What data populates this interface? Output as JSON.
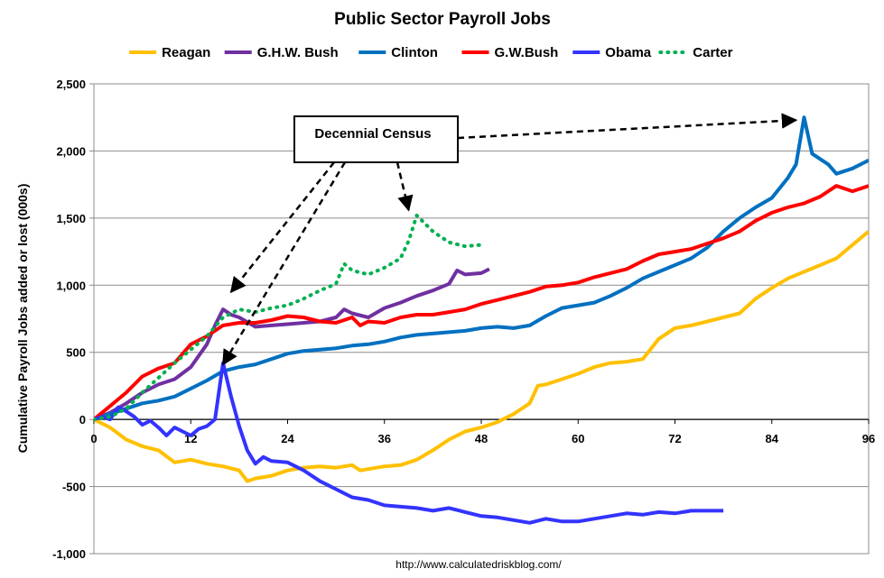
{
  "chart_data": {
    "type": "line",
    "title": "Public Sector Payroll Jobs",
    "ylabel": "Cumulative Payroll Jobs added or lost (000s)",
    "xlabel": "",
    "xlim": [
      0,
      96
    ],
    "ylim": [
      -1000,
      2500
    ],
    "xticks": [
      "0",
      "12",
      "24",
      "36",
      "48",
      "60",
      "72",
      "84",
      "96"
    ],
    "xtick_values": [
      0,
      12,
      24,
      36,
      48,
      60,
      72,
      84,
      96
    ],
    "yticks": [
      "2,500",
      "2,000",
      "1,500",
      "1,000",
      "500",
      "0",
      "-500",
      "-1,000"
    ],
    "ytick_values": [
      2500,
      2000,
      1500,
      1000,
      500,
      0,
      -500,
      -1000
    ],
    "grid": "horizontal",
    "legend_position": "top",
    "series": [
      {
        "name": "Reagan",
        "color": "#FFC000",
        "style": "solid",
        "points": [
          [
            0,
            0
          ],
          [
            2,
            -60
          ],
          [
            4,
            -150
          ],
          [
            6,
            -200
          ],
          [
            8,
            -230
          ],
          [
            10,
            -320
          ],
          [
            12,
            -300
          ],
          [
            14,
            -330
          ],
          [
            16,
            -350
          ],
          [
            18,
            -380
          ],
          [
            19,
            -460
          ],
          [
            20,
            -440
          ],
          [
            22,
            -420
          ],
          [
            24,
            -380
          ],
          [
            26,
            -360
          ],
          [
            28,
            -350
          ],
          [
            30,
            -360
          ],
          [
            32,
            -340
          ],
          [
            33,
            -380
          ],
          [
            34,
            -370
          ],
          [
            36,
            -350
          ],
          [
            38,
            -340
          ],
          [
            40,
            -300
          ],
          [
            42,
            -230
          ],
          [
            44,
            -150
          ],
          [
            46,
            -90
          ],
          [
            48,
            -60
          ],
          [
            50,
            -20
          ],
          [
            52,
            40
          ],
          [
            54,
            120
          ],
          [
            55,
            250
          ],
          [
            56,
            260
          ],
          [
            58,
            300
          ],
          [
            60,
            340
          ],
          [
            62,
            390
          ],
          [
            64,
            420
          ],
          [
            66,
            430
          ],
          [
            68,
            450
          ],
          [
            70,
            600
          ],
          [
            72,
            680
          ],
          [
            74,
            700
          ],
          [
            76,
            730
          ],
          [
            78,
            760
          ],
          [
            80,
            790
          ],
          [
            82,
            900
          ],
          [
            84,
            980
          ],
          [
            86,
            1050
          ],
          [
            88,
            1100
          ],
          [
            90,
            1150
          ],
          [
            92,
            1200
          ],
          [
            94,
            1300
          ],
          [
            96,
            1400
          ]
        ]
      },
      {
        "name": "G.H.W. Bush",
        "color": "#7030A0",
        "style": "solid",
        "points": [
          [
            0,
            0
          ],
          [
            2,
            50
          ],
          [
            4,
            120
          ],
          [
            6,
            200
          ],
          [
            8,
            260
          ],
          [
            10,
            300
          ],
          [
            12,
            390
          ],
          [
            14,
            560
          ],
          [
            15,
            700
          ],
          [
            16,
            820
          ],
          [
            17,
            780
          ],
          [
            18,
            760
          ],
          [
            20,
            690
          ],
          [
            22,
            700
          ],
          [
            24,
            710
          ],
          [
            26,
            720
          ],
          [
            28,
            730
          ],
          [
            30,
            760
          ],
          [
            31,
            820
          ],
          [
            32,
            790
          ],
          [
            34,
            760
          ],
          [
            36,
            830
          ],
          [
            38,
            870
          ],
          [
            40,
            920
          ],
          [
            42,
            960
          ],
          [
            44,
            1010
          ],
          [
            45,
            1110
          ],
          [
            46,
            1080
          ],
          [
            48,
            1090
          ],
          [
            49,
            1120
          ]
        ]
      },
      {
        "name": "Clinton",
        "color": "#0070C0",
        "style": "solid",
        "points": [
          [
            0,
            0
          ],
          [
            2,
            40
          ],
          [
            4,
            80
          ],
          [
            6,
            120
          ],
          [
            8,
            140
          ],
          [
            10,
            170
          ],
          [
            12,
            230
          ],
          [
            14,
            290
          ],
          [
            16,
            360
          ],
          [
            18,
            390
          ],
          [
            20,
            410
          ],
          [
            22,
            450
          ],
          [
            24,
            490
          ],
          [
            26,
            510
          ],
          [
            28,
            520
          ],
          [
            30,
            530
          ],
          [
            32,
            550
          ],
          [
            34,
            560
          ],
          [
            36,
            580
          ],
          [
            38,
            610
          ],
          [
            40,
            630
          ],
          [
            42,
            640
          ],
          [
            44,
            650
          ],
          [
            46,
            660
          ],
          [
            48,
            680
          ],
          [
            50,
            690
          ],
          [
            52,
            680
          ],
          [
            54,
            700
          ],
          [
            56,
            770
          ],
          [
            58,
            830
          ],
          [
            60,
            850
          ],
          [
            62,
            870
          ],
          [
            64,
            920
          ],
          [
            66,
            980
          ],
          [
            68,
            1050
          ],
          [
            70,
            1100
          ],
          [
            72,
            1150
          ],
          [
            74,
            1200
          ],
          [
            76,
            1280
          ],
          [
            78,
            1400
          ],
          [
            80,
            1500
          ],
          [
            82,
            1580
          ],
          [
            84,
            1650
          ],
          [
            86,
            1800
          ],
          [
            87,
            1900
          ],
          [
            88,
            2250
          ],
          [
            89,
            1980
          ],
          [
            90,
            1940
          ],
          [
            91,
            1900
          ],
          [
            92,
            1830
          ],
          [
            94,
            1870
          ],
          [
            96,
            1930
          ]
        ]
      },
      {
        "name": "G.W.Bush",
        "color": "#FF0000",
        "style": "solid",
        "points": [
          [
            0,
            0
          ],
          [
            2,
            100
          ],
          [
            4,
            200
          ],
          [
            6,
            320
          ],
          [
            8,
            380
          ],
          [
            10,
            420
          ],
          [
            12,
            560
          ],
          [
            14,
            620
          ],
          [
            16,
            700
          ],
          [
            18,
            720
          ],
          [
            20,
            720
          ],
          [
            22,
            740
          ],
          [
            24,
            770
          ],
          [
            26,
            760
          ],
          [
            28,
            730
          ],
          [
            30,
            720
          ],
          [
            32,
            760
          ],
          [
            33,
            700
          ],
          [
            34,
            730
          ],
          [
            36,
            720
          ],
          [
            38,
            760
          ],
          [
            40,
            780
          ],
          [
            42,
            780
          ],
          [
            44,
            800
          ],
          [
            46,
            820
          ],
          [
            48,
            860
          ],
          [
            50,
            890
          ],
          [
            52,
            920
          ],
          [
            54,
            950
          ],
          [
            56,
            990
          ],
          [
            58,
            1000
          ],
          [
            60,
            1020
          ],
          [
            62,
            1060
          ],
          [
            64,
            1090
          ],
          [
            66,
            1120
          ],
          [
            68,
            1180
          ],
          [
            70,
            1230
          ],
          [
            72,
            1250
          ],
          [
            74,
            1270
          ],
          [
            76,
            1310
          ],
          [
            78,
            1350
          ],
          [
            80,
            1400
          ],
          [
            82,
            1480
          ],
          [
            84,
            1540
          ],
          [
            86,
            1580
          ],
          [
            88,
            1610
          ],
          [
            90,
            1660
          ],
          [
            92,
            1740
          ],
          [
            94,
            1700
          ],
          [
            96,
            1740
          ]
        ]
      },
      {
        "name": "Obama",
        "color": "#3333FF",
        "style": "solid",
        "points": [
          [
            0,
            0
          ],
          [
            1,
            20
          ],
          [
            2,
            0
          ],
          [
            3,
            90
          ],
          [
            4,
            60
          ],
          [
            5,
            20
          ],
          [
            6,
            -40
          ],
          [
            7,
            -10
          ],
          [
            8,
            -60
          ],
          [
            9,
            -120
          ],
          [
            10,
            -60
          ],
          [
            11,
            -90
          ],
          [
            12,
            -120
          ],
          [
            13,
            -70
          ],
          [
            14,
            -50
          ],
          [
            15,
            0
          ],
          [
            16,
            420
          ],
          [
            17,
            170
          ],
          [
            18,
            -50
          ],
          [
            19,
            -230
          ],
          [
            20,
            -330
          ],
          [
            21,
            -280
          ],
          [
            22,
            -310
          ],
          [
            24,
            -320
          ],
          [
            26,
            -380
          ],
          [
            28,
            -460
          ],
          [
            30,
            -520
          ],
          [
            32,
            -580
          ],
          [
            34,
            -600
          ],
          [
            36,
            -640
          ],
          [
            38,
            -650
          ],
          [
            40,
            -660
          ],
          [
            42,
            -680
          ],
          [
            44,
            -660
          ],
          [
            46,
            -690
          ],
          [
            48,
            -720
          ],
          [
            50,
            -730
          ],
          [
            52,
            -750
          ],
          [
            54,
            -770
          ],
          [
            56,
            -740
          ],
          [
            58,
            -760
          ],
          [
            60,
            -760
          ],
          [
            62,
            -740
          ],
          [
            64,
            -720
          ],
          [
            66,
            -700
          ],
          [
            68,
            -710
          ],
          [
            70,
            -690
          ],
          [
            72,
            -700
          ],
          [
            74,
            -680
          ],
          [
            76,
            -680
          ],
          [
            78,
            -680
          ]
        ]
      },
      {
        "name": "Carter",
        "color": "#00B050",
        "style": "dotted",
        "points": [
          [
            0,
            0
          ],
          [
            2,
            20
          ],
          [
            4,
            80
          ],
          [
            6,
            200
          ],
          [
            8,
            310
          ],
          [
            10,
            420
          ],
          [
            12,
            520
          ],
          [
            14,
            620
          ],
          [
            16,
            760
          ],
          [
            18,
            820
          ],
          [
            20,
            800
          ],
          [
            22,
            830
          ],
          [
            24,
            850
          ],
          [
            26,
            900
          ],
          [
            28,
            960
          ],
          [
            30,
            1010
          ],
          [
            31,
            1160
          ],
          [
            32,
            1110
          ],
          [
            34,
            1080
          ],
          [
            36,
            1130
          ],
          [
            38,
            1200
          ],
          [
            39,
            1330
          ],
          [
            40,
            1520
          ],
          [
            41,
            1460
          ],
          [
            42,
            1400
          ],
          [
            44,
            1320
          ],
          [
            46,
            1290
          ],
          [
            48,
            1300
          ]
        ]
      }
    ],
    "annotations": [
      {
        "text": "Decennial Census",
        "position": "center-top",
        "targets": [
          [
            17,
            950
          ],
          [
            16,
            410
          ],
          [
            39,
            1560
          ],
          [
            87,
            2230
          ]
        ]
      }
    ],
    "source": "http://www.calculatedriskblog.com/"
  }
}
